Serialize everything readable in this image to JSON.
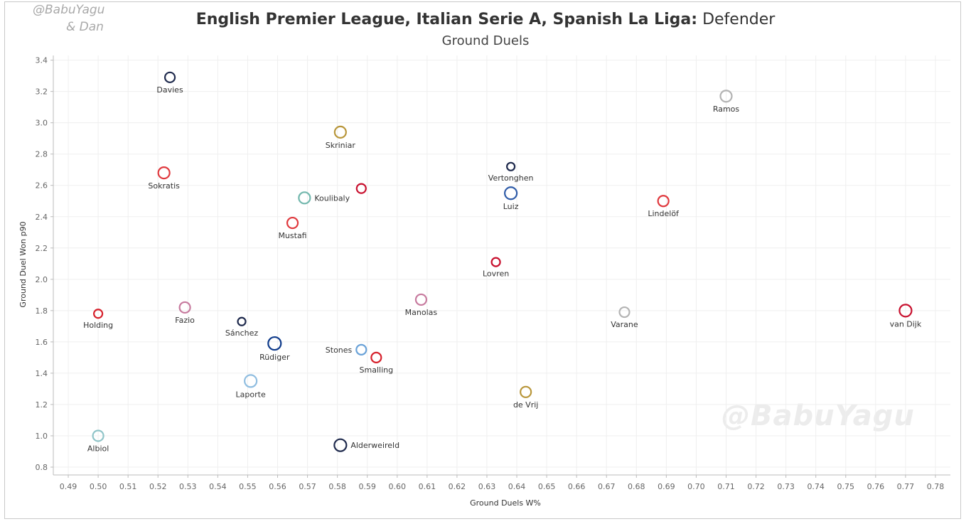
{
  "credits": [
    "@BabuYagu",
    "& Dan"
  ],
  "title_bold": "English Premier League, Italian Serie A, Spanish La Liga:",
  "title_rest": "Defender",
  "subtitle": "Ground Duels",
  "watermark": "@BabuYagu",
  "chart_data": {
    "type": "scatter",
    "xlabel": "Ground Duels W%",
    "ylabel": "Ground Duel Won p90",
    "xlim": [
      0.485,
      0.785
    ],
    "ylim": [
      0.75,
      3.43
    ],
    "xticks": [
      0.49,
      0.5,
      0.51,
      0.52,
      0.53,
      0.54,
      0.55,
      0.56,
      0.57,
      0.58,
      0.59,
      0.6,
      0.61,
      0.62,
      0.63,
      0.64,
      0.65,
      0.66,
      0.67,
      0.68,
      0.69,
      0.7,
      0.71,
      0.72,
      0.73,
      0.74,
      0.75,
      0.76,
      0.77,
      0.78
    ],
    "yticks": [
      0.8,
      1.0,
      1.2,
      1.4,
      1.6,
      1.8,
      2.0,
      2.2,
      2.4,
      2.6,
      2.8,
      3.0,
      3.2,
      3.4
    ],
    "grid": true,
    "points": [
      {
        "label": "Davies",
        "x": 0.524,
        "y": 3.29,
        "color": "#1f2a4d",
        "size": 7,
        "label_pos": "below"
      },
      {
        "label": "Ramos",
        "x": 0.71,
        "y": 3.17,
        "color": "#b3b3b3",
        "size": 8,
        "label_pos": "below"
      },
      {
        "label": "Skriniar",
        "x": 0.581,
        "y": 2.94,
        "color": "#b8963a",
        "size": 8,
        "label_pos": "below"
      },
      {
        "label": "Vertonghen",
        "x": 0.638,
        "y": 2.72,
        "color": "#1f2a4d",
        "size": 5.5,
        "label_pos": "below"
      },
      {
        "label": "Sokratis",
        "x": 0.522,
        "y": 2.68,
        "color": "#e0393e",
        "size": 8,
        "label_pos": "below"
      },
      {
        "label": "",
        "x": 0.588,
        "y": 2.58,
        "color": "#c8102e",
        "size": 6.5,
        "label_pos": "none"
      },
      {
        "label": "Luiz",
        "x": 0.638,
        "y": 2.55,
        "color": "#2e5ba8",
        "size": 8.5,
        "label_pos": "below"
      },
      {
        "label": "Koulibaly",
        "x": 0.569,
        "y": 2.52,
        "color": "#72b7ad",
        "size": 8,
        "label_pos": "right"
      },
      {
        "label": "Lindelöf",
        "x": 0.689,
        "y": 2.5,
        "color": "#e0393e",
        "size": 7.5,
        "label_pos": "below"
      },
      {
        "label": "Mustafi",
        "x": 0.565,
        "y": 2.36,
        "color": "#e0393e",
        "size": 7.5,
        "label_pos": "below"
      },
      {
        "label": "Lovren",
        "x": 0.633,
        "y": 2.11,
        "color": "#c8102e",
        "size": 6,
        "label_pos": "below"
      },
      {
        "label": "Manolas",
        "x": 0.608,
        "y": 1.87,
        "color": "#c77a9e",
        "size": 7.5,
        "label_pos": "below"
      },
      {
        "label": "Holding",
        "x": 0.5,
        "y": 1.78,
        "color": "#d6202b",
        "size": 6,
        "label_pos": "below"
      },
      {
        "label": "Fazio",
        "x": 0.529,
        "y": 1.82,
        "color": "#c77a9e",
        "size": 7.5,
        "label_pos": "below"
      },
      {
        "label": "Varane",
        "x": 0.676,
        "y": 1.79,
        "color": "#b3b3b3",
        "size": 7,
        "label_pos": "below"
      },
      {
        "label": "van Dijk",
        "x": 0.77,
        "y": 1.8,
        "color": "#c8102e",
        "size": 8.5,
        "label_pos": "below"
      },
      {
        "label": "Sánchez",
        "x": 0.548,
        "y": 1.73,
        "color": "#1f2a4d",
        "size": 5.5,
        "label_pos": "below"
      },
      {
        "label": "Rüdiger",
        "x": 0.559,
        "y": 1.59,
        "color": "#0e3a8a",
        "size": 9,
        "label_pos": "below"
      },
      {
        "label": "Stones",
        "x": 0.588,
        "y": 1.55,
        "color": "#6aa2d8",
        "size": 7,
        "label_pos": "left"
      },
      {
        "label": "Smalling",
        "x": 0.593,
        "y": 1.5,
        "color": "#d6202b",
        "size": 7,
        "label_pos": "below"
      },
      {
        "label": "Laporte",
        "x": 0.551,
        "y": 1.35,
        "color": "#8fbde0",
        "size": 8.5,
        "label_pos": "below"
      },
      {
        "label": "de Vrij",
        "x": 0.643,
        "y": 1.28,
        "color": "#b8963a",
        "size": 7.5,
        "label_pos": "below"
      },
      {
        "label": "Albiol",
        "x": 0.5,
        "y": 1.0,
        "color": "#8fc4c8",
        "size": 7.5,
        "label_pos": "below"
      },
      {
        "label": "Alderweireld",
        "x": 0.581,
        "y": 0.94,
        "color": "#1f2a4d",
        "size": 8.5,
        "label_pos": "right"
      }
    ]
  }
}
